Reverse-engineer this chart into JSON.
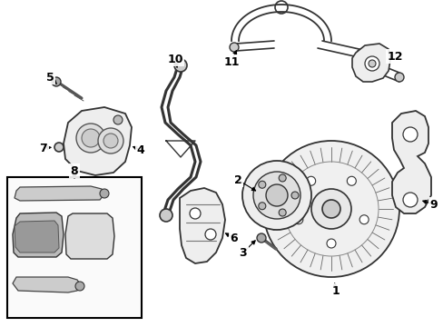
{
  "background_color": "#ffffff",
  "line_color": "#333333",
  "label_color": "#000000",
  "figsize": [
    4.89,
    3.6
  ],
  "dpi": 100,
  "font_size": 9
}
